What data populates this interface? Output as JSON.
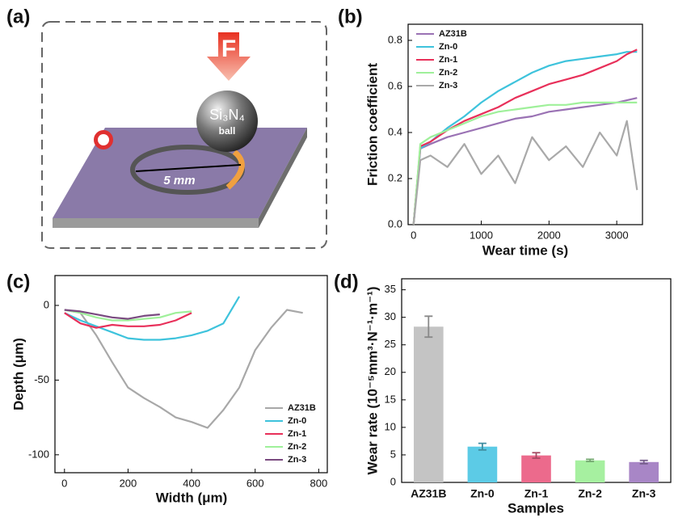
{
  "diagram": {
    "panel_label": "(a)",
    "force_label": "F",
    "ball_label": "Si₃N₄",
    "ball_sublabel": "ball",
    "track_label": "5 mm"
  },
  "chart_data": [
    {
      "type": "line",
      "panel_label": "(b)",
      "x_label": "Wear time (s)",
      "y_label": "Friction coefficient",
      "x": [
        0,
        100,
        250,
        500,
        750,
        1000,
        1250,
        1500,
        1750,
        2000,
        2250,
        2500,
        2750,
        3000,
        3150,
        3300
      ],
      "series": [
        {
          "name": "AZ31B",
          "color": "#9a72b4",
          "values": [
            0,
            0.33,
            0.35,
            0.38,
            0.4,
            0.42,
            0.44,
            0.46,
            0.47,
            0.49,
            0.5,
            0.51,
            0.52,
            0.53,
            0.54,
            0.55
          ]
        },
        {
          "name": "Zn-0",
          "color": "#3ec3dc",
          "values": [
            0,
            0.33,
            0.36,
            0.42,
            0.47,
            0.53,
            0.58,
            0.62,
            0.66,
            0.69,
            0.71,
            0.72,
            0.73,
            0.74,
            0.75,
            0.75
          ]
        },
        {
          "name": "Zn-1",
          "color": "#e8305a",
          "values": [
            0,
            0.34,
            0.36,
            0.41,
            0.45,
            0.48,
            0.51,
            0.55,
            0.58,
            0.61,
            0.63,
            0.65,
            0.68,
            0.71,
            0.74,
            0.76
          ]
        },
        {
          "name": "Zn-2",
          "color": "#9ff09a",
          "values": [
            0,
            0.35,
            0.38,
            0.41,
            0.44,
            0.47,
            0.49,
            0.5,
            0.51,
            0.52,
            0.52,
            0.53,
            0.53,
            0.53,
            0.53,
            0.53
          ]
        },
        {
          "name": "Zn-3",
          "color": "#a9a9a9",
          "values": [
            0,
            0.28,
            0.3,
            0.25,
            0.35,
            0.22,
            0.3,
            0.18,
            0.38,
            0.28,
            0.34,
            0.25,
            0.4,
            0.3,
            0.45,
            0.15
          ]
        }
      ],
      "xlim": [
        -80,
        3380
      ],
      "xticks": [
        0,
        1000,
        2000,
        3000
      ],
      "ylim": [
        0,
        0.87
      ],
      "yticks": [
        {
          "value": 0,
          "label": "0.0"
        },
        0.2,
        0.4,
        0.6,
        0.8
      ]
    },
    {
      "type": "line",
      "panel_label": "(c)",
      "x_label": "Width (μm)",
      "y_label": "Depth (μm)",
      "x": [
        0,
        50,
        100,
        150,
        200,
        250,
        300,
        350,
        400,
        450,
        500,
        550,
        600,
        650,
        700,
        750
      ],
      "series": [
        {
          "name": "AZ31B",
          "color": "#a8a8a8",
          "values": [
            -3,
            -5,
            -20,
            -38,
            -55,
            -62,
            -68,
            -75,
            -78,
            -82,
            -70,
            -55,
            -30,
            -15,
            -3,
            -5
          ]
        },
        {
          "name": "Zn-0",
          "color": "#3ec3dc",
          "values": [
            -5,
            -10,
            -14,
            -18,
            -22,
            -23,
            -23,
            -22,
            -20,
            -17,
            -12,
            6,
            null,
            null,
            null,
            null
          ]
        },
        {
          "name": "Zn-1",
          "color": "#e8305a",
          "values": [
            -5,
            -12,
            -15,
            -13,
            -14,
            -14,
            -13,
            -10,
            -5,
            null,
            null,
            null,
            null,
            null,
            null,
            null
          ]
        },
        {
          "name": "Zn-2",
          "color": "#9ff09a",
          "values": [
            -3,
            -5,
            -8,
            -10,
            -10,
            -9,
            -8,
            -5,
            -4,
            null,
            null,
            null,
            null,
            null,
            null,
            null
          ]
        },
        {
          "name": "Zn-3",
          "color": "#7a4a80",
          "values": [
            -3,
            -4,
            -6,
            -8,
            -9,
            -7,
            -6,
            null,
            null,
            null,
            null,
            null,
            null,
            null,
            null,
            null
          ]
        }
      ],
      "xlim": [
        -30,
        827
      ],
      "xticks": [
        0,
        200,
        400,
        600,
        800
      ],
      "ylim": [
        -112,
        20
      ],
      "yticks": [
        0,
        -50,
        -100
      ]
    },
    {
      "type": "bar",
      "panel_label": "(d)",
      "x_label": "Samples",
      "y_label": "Wear rate (10⁻⁵mm³·N⁻¹·m⁻¹)",
      "categories": [
        "AZ31B",
        "Zn-0",
        "Zn-1",
        "Zn-2",
        "Zn-3"
      ],
      "values": [
        28.3,
        6.5,
        4.9,
        4.0,
        3.7
      ],
      "errors": [
        1.9,
        0.6,
        0.5,
        0.2,
        0.3
      ],
      "colors": [
        "#c4c4c4",
        "#5ccbe6",
        "#ec6a8c",
        "#a6f0a0",
        "#a886c6"
      ],
      "ylim": [
        0,
        37
      ],
      "yticks": [
        0,
        5,
        10,
        15,
        20,
        25,
        30,
        35
      ]
    }
  ]
}
